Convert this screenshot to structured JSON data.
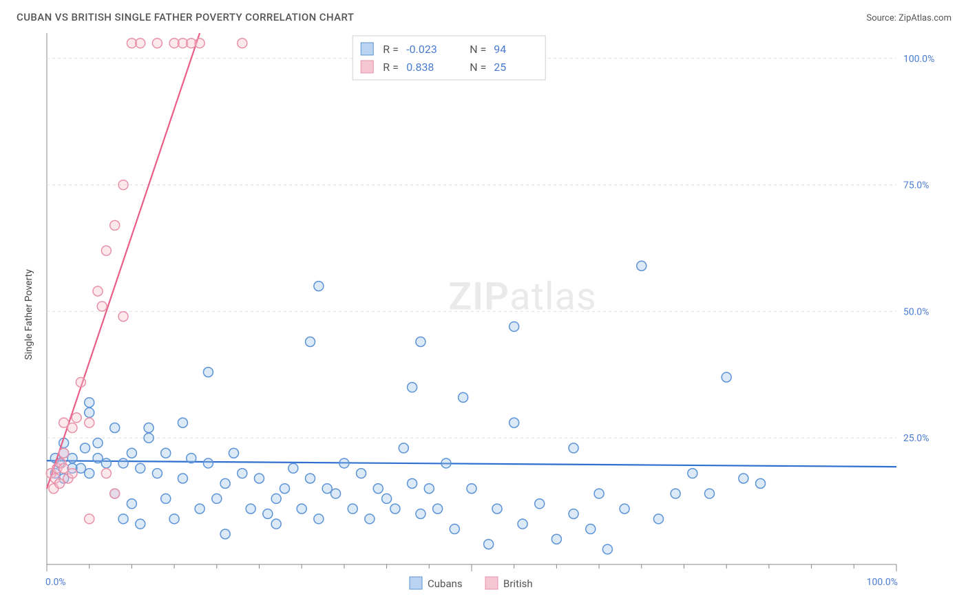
{
  "title": "CUBAN VS BRITISH SINGLE FATHER POVERTY CORRELATION CHART",
  "source_label": "Source: ZipAtlas.com",
  "ylabel": "Single Father Poverty",
  "watermark": {
    "bold": "ZIP",
    "light": "atlas"
  },
  "chart": {
    "type": "scatter",
    "xlim": [
      0,
      100
    ],
    "ylim": [
      0,
      105
    ],
    "x_ticks_major": [
      0,
      50,
      100
    ],
    "x_ticks_minor": [
      5,
      10,
      15,
      20,
      25,
      30,
      35,
      40,
      45,
      55,
      60,
      65,
      70,
      75,
      80,
      85,
      90,
      95
    ],
    "x_tick_labels": {
      "0": "0.0%",
      "50": "50.0%",
      "100": "100.0%"
    },
    "y_ticks": [
      25,
      50,
      75,
      100
    ],
    "y_tick_labels": {
      "25": "25.0%",
      "50": "50.0%",
      "75": "75.0%",
      "100": "100.0%"
    },
    "background_color": "#ffffff",
    "grid_color": "#e0e0e0",
    "axis_color": "#888888",
    "tick_label_color": "#4a7bd0",
    "marker_radius": 7,
    "series": [
      {
        "name": "Cubans",
        "color_stroke": "#5b93d6",
        "color_fill": "#9cc0e8",
        "R": "-0.023",
        "N": "94",
        "trend": {
          "x1": 0,
          "y1": 20.5,
          "x2": 100,
          "y2": 19.3,
          "color": "#2f6fd0"
        },
        "points": [
          [
            1,
            21
          ],
          [
            1,
            18
          ],
          [
            1.5,
            20
          ],
          [
            2,
            22
          ],
          [
            2,
            17
          ],
          [
            2,
            24
          ],
          [
            3,
            21
          ],
          [
            3,
            19
          ],
          [
            4,
            19
          ],
          [
            4.5,
            23
          ],
          [
            5,
            30
          ],
          [
            5,
            32
          ],
          [
            5,
            18
          ],
          [
            6,
            21
          ],
          [
            6,
            24
          ],
          [
            7,
            20
          ],
          [
            8,
            27
          ],
          [
            8,
            14
          ],
          [
            9,
            9
          ],
          [
            9,
            20
          ],
          [
            10,
            12
          ],
          [
            10,
            22
          ],
          [
            11,
            19
          ],
          [
            11,
            8
          ],
          [
            12,
            27
          ],
          [
            12,
            25
          ],
          [
            13,
            18
          ],
          [
            14,
            22
          ],
          [
            14,
            13
          ],
          [
            15,
            9
          ],
          [
            16,
            28
          ],
          [
            16,
            17
          ],
          [
            17,
            21
          ],
          [
            18,
            11
          ],
          [
            19,
            38
          ],
          [
            19,
            20
          ],
          [
            20,
            13
          ],
          [
            21,
            16
          ],
          [
            21,
            6
          ],
          [
            22,
            22
          ],
          [
            23,
            18
          ],
          [
            24,
            11
          ],
          [
            25,
            17
          ],
          [
            26,
            10
          ],
          [
            27,
            13
          ],
          [
            27,
            8
          ],
          [
            28,
            15
          ],
          [
            29,
            19
          ],
          [
            30,
            11
          ],
          [
            31,
            17
          ],
          [
            31,
            44
          ],
          [
            32,
            9
          ],
          [
            32,
            55
          ],
          [
            33,
            15
          ],
          [
            34,
            14
          ],
          [
            35,
            20
          ],
          [
            36,
            11
          ],
          [
            37,
            18
          ],
          [
            38,
            9
          ],
          [
            39,
            15
          ],
          [
            40,
            13
          ],
          [
            41,
            11
          ],
          [
            42,
            23
          ],
          [
            43,
            16
          ],
          [
            43,
            35
          ],
          [
            44,
            10
          ],
          [
            44,
            44
          ],
          [
            45,
            15
          ],
          [
            46,
            11
          ],
          [
            47,
            20
          ],
          [
            48,
            7
          ],
          [
            49,
            33
          ],
          [
            50,
            15
          ],
          [
            52,
            4
          ],
          [
            53,
            11
          ],
          [
            55,
            47
          ],
          [
            55,
            28
          ],
          [
            56,
            8
          ],
          [
            58,
            12
          ],
          [
            60,
            5
          ],
          [
            62,
            10
          ],
          [
            62,
            23
          ],
          [
            64,
            7
          ],
          [
            65,
            14
          ],
          [
            66,
            3
          ],
          [
            68,
            11
          ],
          [
            70,
            59
          ],
          [
            72,
            9
          ],
          [
            74,
            14
          ],
          [
            76,
            18
          ],
          [
            78,
            14
          ],
          [
            80,
            37
          ],
          [
            82,
            17
          ],
          [
            84,
            16
          ]
        ]
      },
      {
        "name": "British",
        "color_stroke": "#e890a8",
        "color_fill": "#f5bfcd",
        "R": "0.838",
        "N": "25",
        "trend": {
          "x1": 0,
          "y1": 15,
          "x2": 18,
          "y2": 105,
          "color": "#ea5d87"
        },
        "points": [
          [
            0.5,
            18
          ],
          [
            0.8,
            15
          ],
          [
            1,
            17
          ],
          [
            1.2,
            19
          ],
          [
            1.5,
            16
          ],
          [
            1.7,
            20
          ],
          [
            2,
            22
          ],
          [
            2,
            28
          ],
          [
            2,
            19
          ],
          [
            2.5,
            17
          ],
          [
            3,
            27
          ],
          [
            3,
            18
          ],
          [
            3.5,
            29
          ],
          [
            4,
            36
          ],
          [
            5,
            28
          ],
          [
            5,
            9
          ],
          [
            6,
            54
          ],
          [
            6.5,
            51
          ],
          [
            7,
            62
          ],
          [
            7,
            18
          ],
          [
            8,
            67
          ],
          [
            8,
            14
          ],
          [
            9,
            75
          ],
          [
            9,
            49
          ],
          [
            10,
            103
          ]
        ],
        "extra_top_points": [
          [
            11,
            103
          ],
          [
            13,
            103
          ],
          [
            15,
            103
          ],
          [
            16,
            103
          ],
          [
            17,
            103
          ],
          [
            18,
            103
          ],
          [
            23,
            103
          ]
        ]
      }
    ]
  },
  "stats_box": {
    "rows": [
      {
        "swatch_fill": "#b9d3f0",
        "swatch_stroke": "#5b93d6",
        "R_label": "R =",
        "R_val": "-0.023",
        "N_label": "N =",
        "N_val": "94"
      },
      {
        "swatch_fill": "#f5c7d4",
        "swatch_stroke": "#e890a8",
        "R_label": "R =",
        "R_val": "0.838",
        "N_label": "N =",
        "N_val": "25"
      }
    ]
  },
  "legend": {
    "items": [
      {
        "label": "Cubans",
        "swatch_fill": "#b9d3f0",
        "swatch_stroke": "#5b93d6"
      },
      {
        "label": "British",
        "swatch_fill": "#f5c7d4",
        "swatch_stroke": "#e890a8"
      }
    ]
  }
}
